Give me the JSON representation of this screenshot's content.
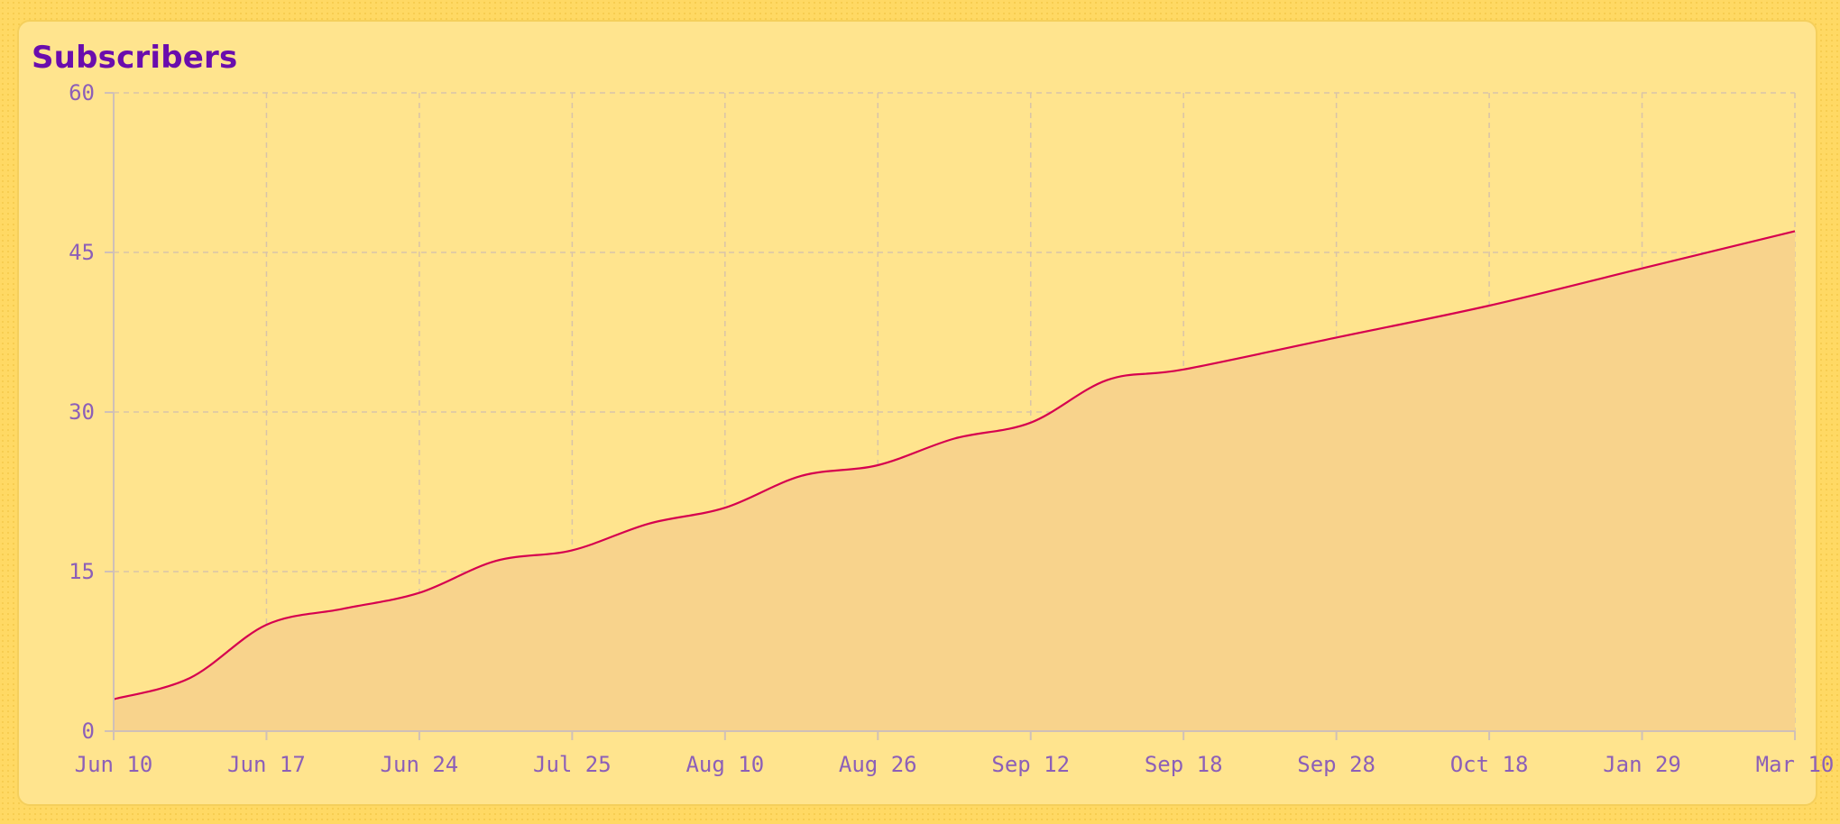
{
  "chart_data": {
    "type": "area",
    "title": "Subscribers",
    "xlabel": "",
    "ylabel": "",
    "x": [
      "Jun 10",
      "Jun 17",
      "Jun 24",
      "Jul 25",
      "Aug 10",
      "Aug 26",
      "Sep 12",
      "Sep 18",
      "Sep 28",
      "Oct 18",
      "Jan 29",
      "Mar 10"
    ],
    "values": [
      3,
      10,
      13,
      17,
      21,
      25,
      29,
      34,
      37,
      40,
      43.5,
      47
    ],
    "line_points": [
      [
        0,
        3
      ],
      [
        0.5,
        5
      ],
      [
        1,
        10
      ],
      [
        1.5,
        11.5
      ],
      [
        2,
        13
      ],
      [
        2.5,
        16
      ],
      [
        3,
        17
      ],
      [
        3.5,
        19.5
      ],
      [
        4,
        21
      ],
      [
        4.5,
        24
      ],
      [
        5,
        25
      ],
      [
        5.5,
        27.5
      ],
      [
        6,
        29
      ],
      [
        6.5,
        33
      ],
      [
        7,
        34
      ],
      [
        8,
        37
      ],
      [
        9,
        40
      ],
      [
        10,
        43.5
      ],
      [
        11,
        47
      ]
    ],
    "yticks": [
      0,
      15,
      30,
      45,
      60
    ],
    "ylim": [
      0,
      60
    ],
    "grid": true,
    "legend": "none",
    "colors": {
      "line": "#d6004f",
      "fill": "#f8d38c",
      "grid": "#d9c4a8",
      "axis": "#cfc0b8",
      "tick_text": "#8c5fb8",
      "title": "#6a0dad"
    }
  }
}
